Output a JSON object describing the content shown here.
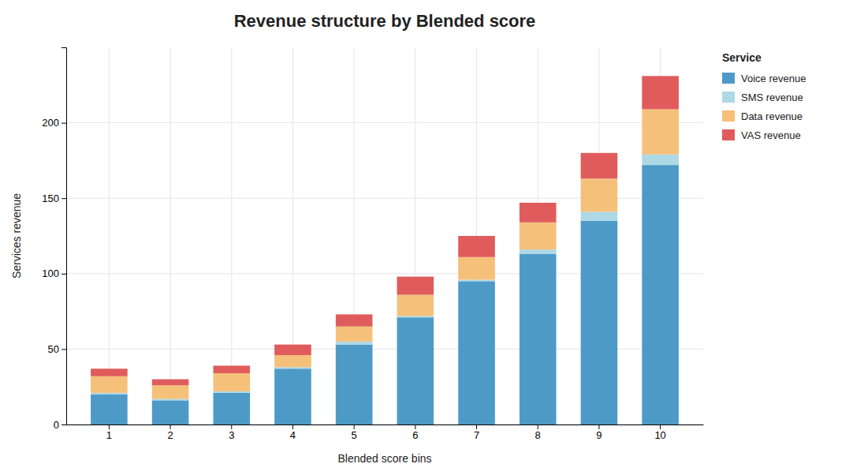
{
  "chart_data": {
    "type": "bar",
    "stacked": true,
    "title": "Revenue structure by Blended score",
    "xlabel": "Blended score bins",
    "ylabel": "Services revenue",
    "categories": [
      1,
      2,
      3,
      4,
      5,
      6,
      7,
      8,
      9,
      10
    ],
    "series": [
      {
        "name": "Voice revenue",
        "color": "#4e9ac7",
        "values": [
          20,
          16,
          21,
          37,
          53,
          71,
          95,
          113,
          135,
          172
        ]
      },
      {
        "name": "SMS revenue",
        "color": "#add8e6",
        "values": [
          1,
          1,
          1,
          1,
          2,
          1,
          1,
          3,
          6,
          7
        ]
      },
      {
        "name": "Data revenue",
        "color": "#f5c07a",
        "values": [
          11,
          9,
          12,
          8,
          10,
          14,
          15,
          18,
          22,
          30
        ]
      },
      {
        "name": "VAS revenue",
        "color": "#e05c5c",
        "values": [
          5,
          4,
          5,
          7,
          8,
          12,
          14,
          13,
          17,
          22
        ]
      }
    ],
    "ylim": [
      0,
      250
    ],
    "yticks": [
      0,
      50,
      100,
      150,
      200
    ],
    "grid": true,
    "legend": "right",
    "legend_title": "Service"
  }
}
